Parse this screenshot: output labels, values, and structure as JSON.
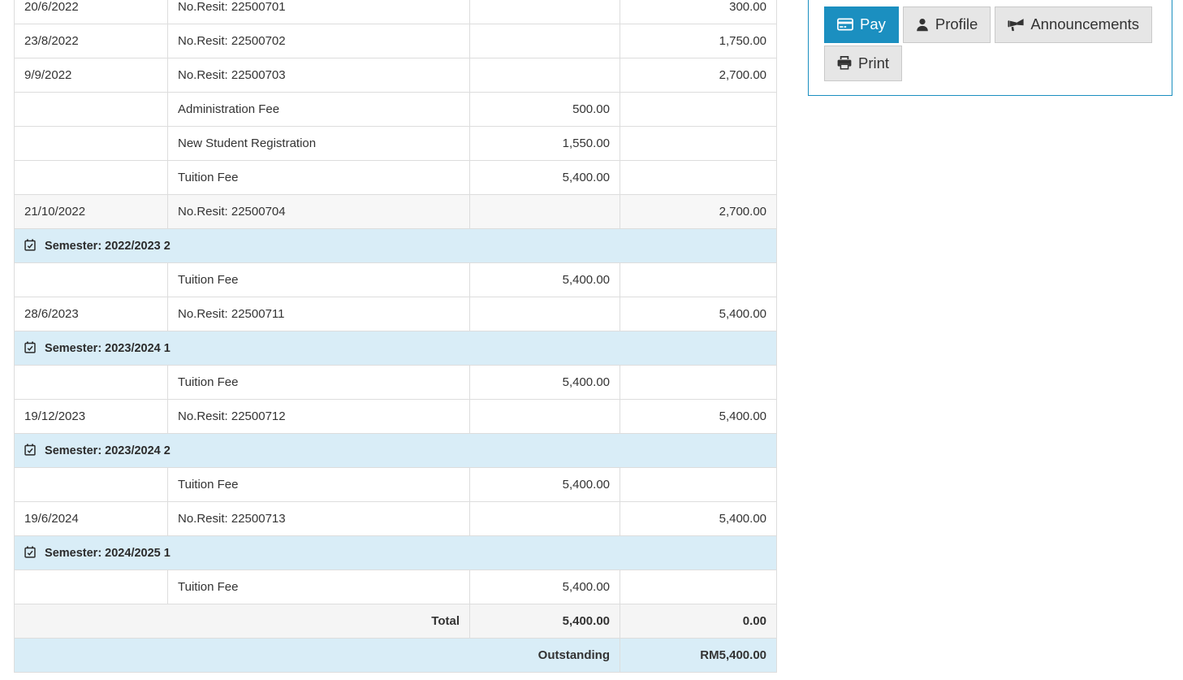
{
  "table": {
    "rows": [
      {
        "type": "data",
        "date": "20/6/2022",
        "description": "No.Resit: 22500701",
        "debit": "",
        "credit": "300.00"
      },
      {
        "type": "data",
        "date": "23/8/2022",
        "description": "No.Resit: 22500702",
        "debit": "",
        "credit": "1,750.00"
      },
      {
        "type": "data",
        "date": "9/9/2022",
        "description": "No.Resit: 22500703",
        "debit": "",
        "credit": "2,700.00"
      },
      {
        "type": "data",
        "date": "",
        "description": "Administration Fee",
        "debit": "500.00",
        "credit": ""
      },
      {
        "type": "data",
        "date": "",
        "description": "New Student Registration",
        "debit": "1,550.00",
        "credit": ""
      },
      {
        "type": "data",
        "date": "",
        "description": "Tuition Fee",
        "debit": "5,400.00",
        "credit": ""
      },
      {
        "type": "data",
        "striped": true,
        "date": "21/10/2022",
        "description": "No.Resit: 22500704",
        "debit": "",
        "credit": "2,700.00"
      },
      {
        "type": "semester",
        "label": "Semester: 2022/2023 2"
      },
      {
        "type": "data",
        "date": "",
        "description": "Tuition Fee",
        "debit": "5,400.00",
        "credit": ""
      },
      {
        "type": "data",
        "date": "28/6/2023",
        "description": "No.Resit: 22500711",
        "debit": "",
        "credit": "5,400.00"
      },
      {
        "type": "semester",
        "label": "Semester: 2023/2024 1"
      },
      {
        "type": "data",
        "date": "",
        "description": "Tuition Fee",
        "debit": "5,400.00",
        "credit": ""
      },
      {
        "type": "data",
        "date": "19/12/2023",
        "description": "No.Resit: 22500712",
        "debit": "",
        "credit": "5,400.00"
      },
      {
        "type": "semester",
        "label": "Semester: 2023/2024 2"
      },
      {
        "type": "data",
        "date": "",
        "description": "Tuition Fee",
        "debit": "5,400.00",
        "credit": ""
      },
      {
        "type": "data",
        "date": "19/6/2024",
        "description": "No.Resit: 22500713",
        "debit": "",
        "credit": "5,400.00"
      },
      {
        "type": "semester",
        "label": "Semester: 2024/2025 1"
      },
      {
        "type": "data",
        "date": "",
        "description": "Tuition Fee",
        "debit": "5,400.00",
        "credit": ""
      }
    ],
    "total": {
      "label": "Total",
      "debit": "5,400.00",
      "credit": "0.00"
    },
    "outstanding": {
      "label": "Outstanding",
      "amount": "RM5,400.00"
    }
  },
  "actions": {
    "pay_label": "Pay",
    "profile_label": "Profile",
    "announcements_label": "Announcements",
    "print_label": "Print"
  },
  "icons": {
    "semester": "calendar-check-icon",
    "pay": "credit-card-icon",
    "profile": "user-icon",
    "announcements": "bullhorn-icon",
    "print": "printer-icon"
  },
  "colors": {
    "accent_blue": "#1b8fc0",
    "info_blue_bg": "#d9edf7",
    "total_gray_bg": "#f5f5f5",
    "stripe_gray_bg": "#f7f7f7",
    "table_border": "#dddddd",
    "button_gray_bg": "#e6e6e6",
    "text": "#333333"
  }
}
